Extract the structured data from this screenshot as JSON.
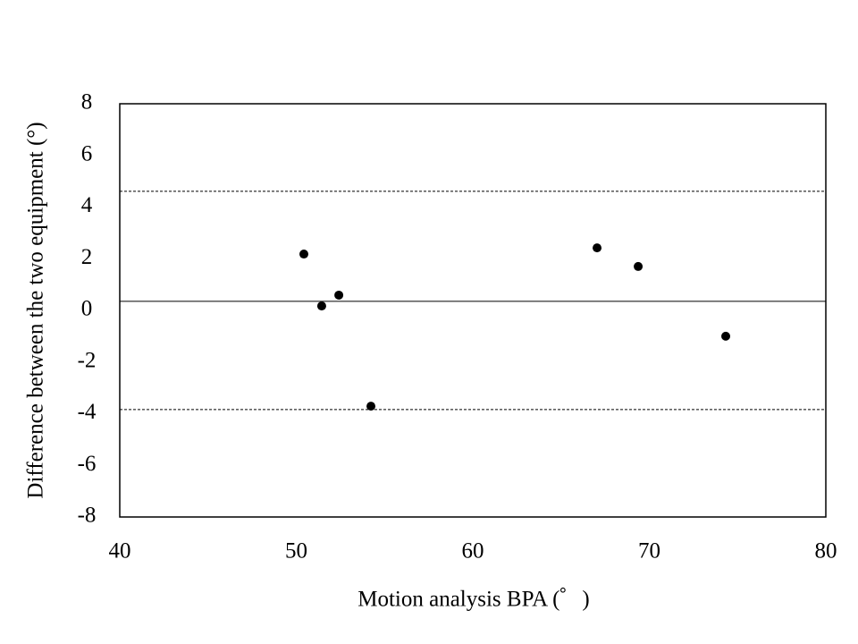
{
  "chart_data": {
    "type": "scatter",
    "xlabel": "Motion analysis BPA (゜)",
    "ylabel": "Difference between the two equipment (°)",
    "x": [
      50.43,
      51.44,
      52.41,
      54.23,
      67.04,
      69.37,
      74.33
    ],
    "values": [
      2.18,
      0.17,
      0.59,
      -3.71,
      2.42,
      1.7,
      -1.0
    ],
    "color": "#000000",
    "xlim": [
      40,
      80
    ],
    "xticks": [
      40,
      50,
      60,
      70,
      80
    ],
    "ylim": [
      -8,
      8
    ],
    "yticks": [
      -8,
      -6,
      -4,
      -2,
      0,
      2,
      4,
      6,
      8
    ],
    "hlines": [
      {
        "value": 0.35,
        "dashed": false
      },
      {
        "value": 4.61,
        "dashed": true
      },
      {
        "value": -3.84,
        "dashed": true
      }
    ],
    "grid": false
  }
}
